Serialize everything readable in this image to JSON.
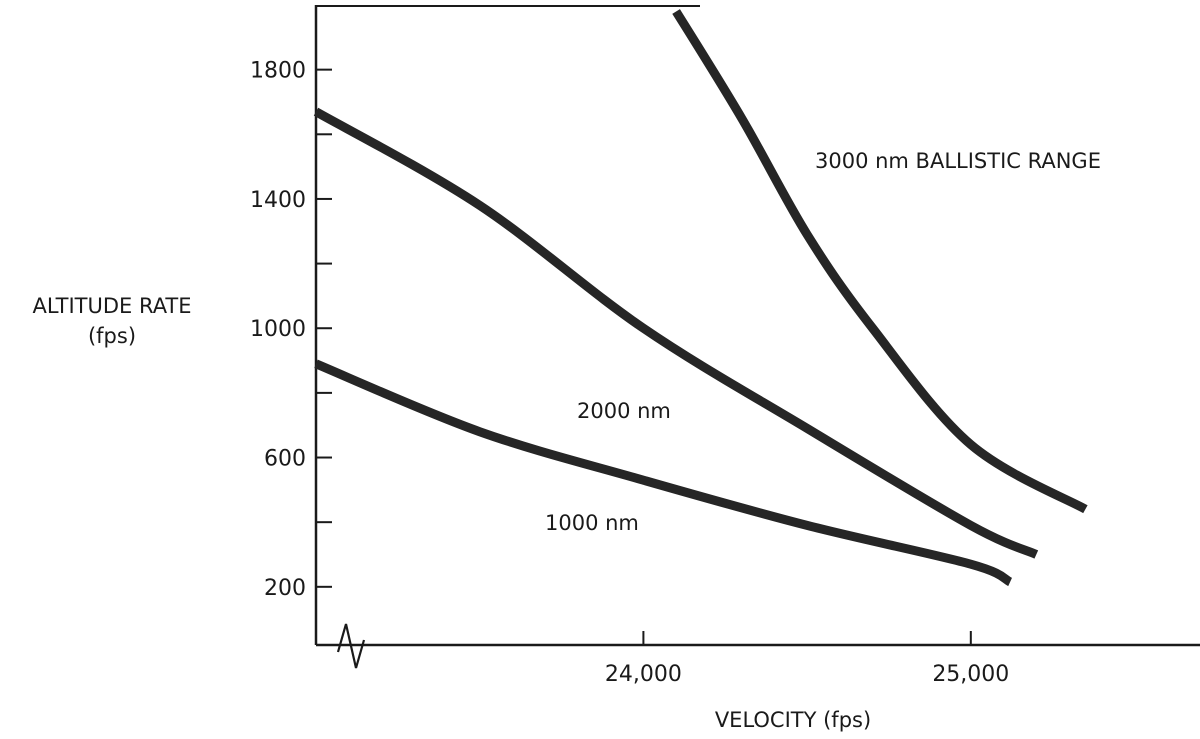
{
  "chart_data": {
    "type": "line",
    "xlabel": "VELOCITY (fps)",
    "ylabel_line1": "ALTITUDE RATE",
    "ylabel_line2": "(fps)",
    "x_ticks": [
      {
        "value": 24000,
        "label": "24,000"
      },
      {
        "value": 25000,
        "label": "25,000"
      }
    ],
    "y_ticks": [
      {
        "value": 200,
        "label": "200"
      },
      {
        "value": 600,
        "label": "600"
      },
      {
        "value": 1000,
        "label": "1000"
      },
      {
        "value": 1400,
        "label": "1400"
      },
      {
        "value": 1800,
        "label": "1800"
      }
    ],
    "y_minor_ticks": [
      400,
      800,
      1200,
      1600
    ],
    "xlim": [
      23000,
      25700
    ],
    "ylim": [
      20,
      2000
    ],
    "axis_break": true,
    "grid": false,
    "series": [
      {
        "name": "1000 nm",
        "points": [
          [
            23000,
            890
          ],
          [
            23500,
            680
          ],
          [
            24000,
            530
          ],
          [
            24500,
            390
          ],
          [
            25000,
            270
          ],
          [
            25120,
            215
          ]
        ]
      },
      {
        "name": "2000 nm",
        "points": [
          [
            23000,
            1670
          ],
          [
            23500,
            1380
          ],
          [
            24000,
            1000
          ],
          [
            24500,
            690
          ],
          [
            25000,
            390
          ],
          [
            25200,
            300
          ]
        ]
      },
      {
        "name": "3000 nm BALLISTIC RANGE",
        "points": [
          [
            24100,
            1980
          ],
          [
            24300,
            1650
          ],
          [
            24500,
            1290
          ],
          [
            24700,
            1000
          ],
          [
            25000,
            640
          ],
          [
            25350,
            440
          ]
        ]
      }
    ],
    "annotations": [
      {
        "text": "3000 nm BALLISTIC RANGE",
        "series": 2
      },
      {
        "text": "2000 nm",
        "series": 1
      },
      {
        "text": "1000 nm",
        "series": 0
      }
    ]
  }
}
